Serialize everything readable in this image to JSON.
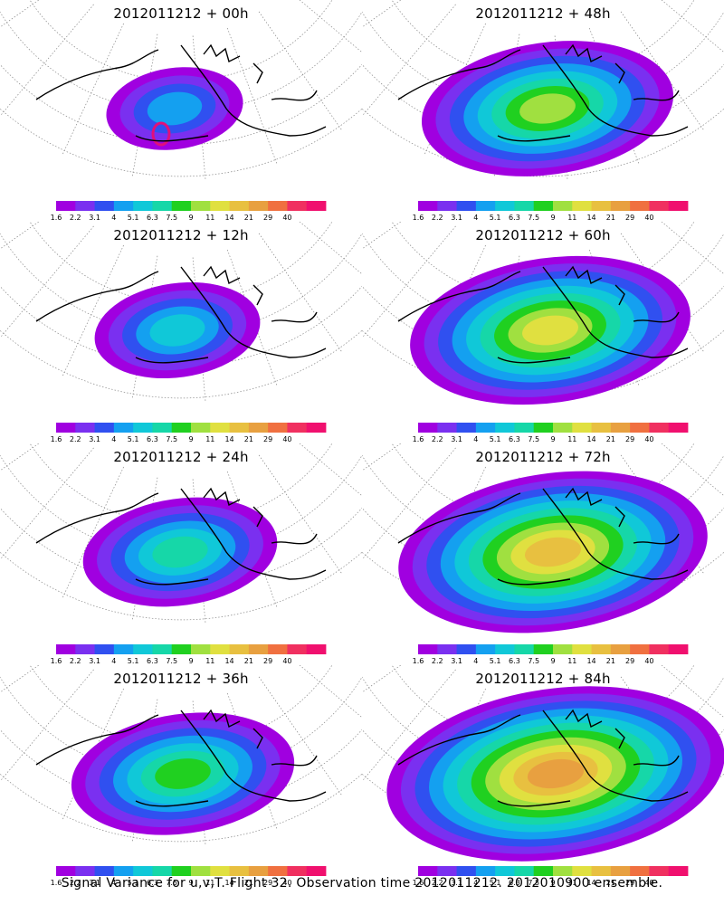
{
  "caption": "Signal Variance for u,v,T. Flight 32. Observation time 2012011212. 2012010900 ensemble.",
  "legend": {
    "labels": [
      "1.6",
      "2.2",
      "3.1",
      "4",
      "5.1",
      "6.3",
      "7.5",
      "9",
      "11",
      "14",
      "21",
      "29",
      "40"
    ],
    "colors": [
      "#a000e0",
      "#7a30f0",
      "#3050f0",
      "#14a0f0",
      "#10c8d8",
      "#16d7a8",
      "#20d020",
      "#a0e040",
      "#e0e040",
      "#e8c040",
      "#e8a040",
      "#f07040",
      "#f03060",
      "#f0106e"
    ]
  },
  "panels": [
    {
      "title": "2012011212 + 00h",
      "level": 1
    },
    {
      "title": "2012011212 + 48h",
      "level": 5
    },
    {
      "title": "2012011212 + 12h",
      "level": 2
    },
    {
      "title": "2012011212 + 60h",
      "level": 6
    },
    {
      "title": "2012011212 + 24h",
      "level": 3
    },
    {
      "title": "2012011212 + 72h",
      "level": 7
    },
    {
      "title": "2012011212 + 36h",
      "level": 4
    },
    {
      "title": "2012011212 + 84h",
      "level": 8
    }
  ]
}
